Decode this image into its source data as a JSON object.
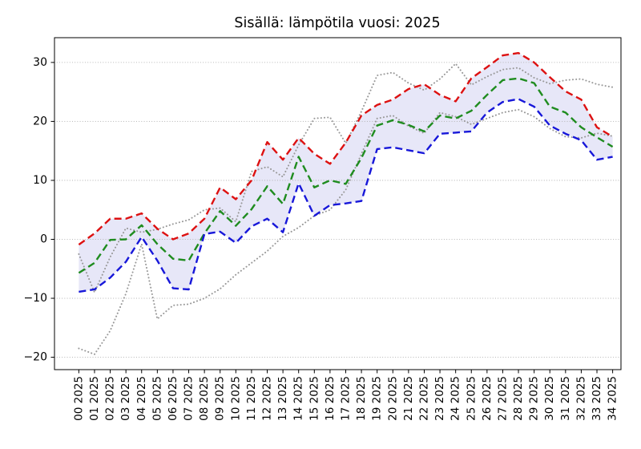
{
  "chart_data": {
    "type": "line",
    "title": "Sisällä: lämpötila vuosi: 2025",
    "xlabel": "",
    "ylabel": "",
    "x_tick_labels": [
      "00 2025",
      "01 2025",
      "02 2025",
      "03 2025",
      "04 2025",
      "05 2025",
      "06 2025",
      "07 2025",
      "08 2025",
      "09 2025",
      "10 2025",
      "11 2025",
      "12 2025",
      "13 2025",
      "14 2025",
      "15 2025",
      "16 2025",
      "17 2025",
      "18 2025",
      "19 2025",
      "20 2025",
      "21 2025",
      "22 2025",
      "23 2025",
      "24 2025",
      "25 2025",
      "26 2025",
      "27 2025",
      "28 2025",
      "29 2025",
      "30 2025",
      "31 2025",
      "32 2025",
      "33 2025",
      "34 2025"
    ],
    "yticks": [
      -20,
      -10,
      0,
      10,
      20,
      30
    ],
    "ytick_labels": [
      "−20",
      "−10",
      "0",
      "10",
      "20",
      "30"
    ],
    "ylim": [
      -22.1,
      34.2
    ],
    "xlim": [
      -1.55,
      34.53
    ],
    "grid": "horizontal-dotted",
    "gridline_color": "#b3b3b3",
    "legend_position": "none",
    "band": {
      "upper": "red-dashed-upper",
      "lower": "blue-dashed-lower",
      "color": "#e3e3f7"
    },
    "series": [
      {
        "name": "gray-dotted-a",
        "style": "dotted",
        "color": "#999999",
        "width": 2.0,
        "values": [
          -2.5,
          -9.0,
          -3.0,
          1.9,
          1.2,
          1.7,
          2.6,
          3.3,
          5.0,
          5.3,
          3.0,
          11.5,
          12.3,
          10.6,
          16.0,
          20.5,
          20.7,
          16.3,
          21.7,
          27.8,
          28.3,
          26.5,
          25.3,
          27.2,
          29.8,
          26.2,
          27.6,
          28.8,
          29.1,
          27.4,
          26.4,
          27.0,
          27.2,
          26.3,
          25.8
        ]
      },
      {
        "name": "gray-dotted-b",
        "style": "dotted",
        "color": "#999999",
        "width": 2.0,
        "values": [
          -18.5,
          -19.5,
          -15.5,
          -9.2,
          -0.8,
          -13.5,
          -11.2,
          -11.0,
          -10.0,
          -8.4,
          -6.0,
          -4.0,
          -2.0,
          0.5,
          2.0,
          4.0,
          5.0,
          8.4,
          14.5,
          20.5,
          21.0,
          19.2,
          18.0,
          21.5,
          20.8,
          19.5,
          20.5,
          21.5,
          22.0,
          20.8,
          18.8,
          17.4,
          17.2,
          18.0,
          17.5
        ]
      },
      {
        "name": "red-dashed-upper",
        "style": "dashed",
        "color": "#dd1111",
        "width": 2.4,
        "values": [
          -0.9,
          1.0,
          3.5,
          3.5,
          4.4,
          1.8,
          0.0,
          1.0,
          3.5,
          8.8,
          6.8,
          10.0,
          16.5,
          13.5,
          17.2,
          14.5,
          12.8,
          16.4,
          21.0,
          22.8,
          23.7,
          25.5,
          26.3,
          24.5,
          23.4,
          27.3,
          29.2,
          31.2,
          31.6,
          30.0,
          27.5,
          25.1,
          23.7,
          19.0,
          17.4
        ]
      },
      {
        "name": "green-dashed-middle",
        "style": "dashed",
        "color": "#1f8c1f",
        "width": 2.4,
        "values": [
          -5.7,
          -4.0,
          -0.1,
          0.0,
          2.4,
          -0.8,
          -3.3,
          -3.6,
          1.0,
          4.8,
          2.3,
          5.1,
          9.0,
          6.0,
          14.0,
          8.8,
          10.0,
          9.4,
          13.8,
          19.3,
          20.2,
          19.4,
          18.3,
          21.0,
          20.5,
          21.8,
          24.5,
          27.0,
          27.3,
          26.5,
          22.5,
          21.5,
          19.0,
          17.3,
          15.7
        ]
      },
      {
        "name": "blue-dashed-lower",
        "style": "dashed",
        "color": "#1717d9",
        "width": 2.4,
        "values": [
          -8.9,
          -8.5,
          -6.5,
          -3.8,
          0.4,
          -3.6,
          -8.3,
          -8.5,
          0.9,
          1.3,
          -0.6,
          2.2,
          3.5,
          1.2,
          9.5,
          4.0,
          5.8,
          6.1,
          6.5,
          15.3,
          15.6,
          15.1,
          14.6,
          17.9,
          18.1,
          18.3,
          21.5,
          23.3,
          23.8,
          22.5,
          19.3,
          17.9,
          16.8,
          13.5,
          14.0
        ]
      }
    ]
  }
}
